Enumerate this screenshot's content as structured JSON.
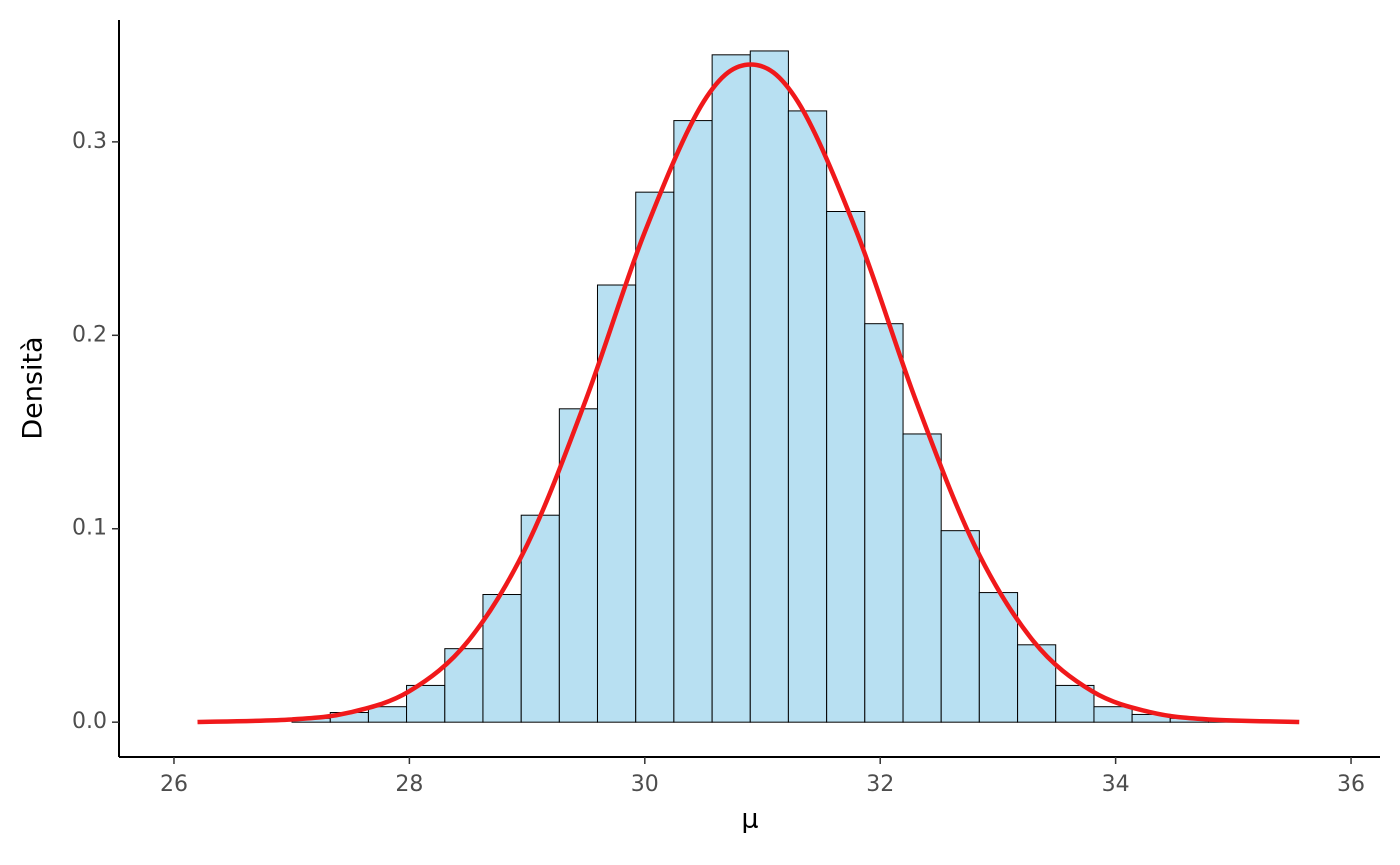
{
  "chart_data": {
    "type": "histogram",
    "xlabel": "μ",
    "ylabel": "Densità",
    "bins": [
      26.03,
      26.354,
      26.679,
      27.003,
      27.328,
      27.652,
      27.976,
      28.301,
      28.625,
      28.95,
      29.274,
      29.598,
      29.923,
      30.247,
      30.572,
      30.896,
      31.22,
      31.545,
      31.869,
      32.194,
      32.518,
      32.842,
      33.167,
      33.491,
      33.816,
      34.14,
      34.464,
      34.789,
      35.113,
      35.438,
      35.762
    ],
    "values": [
      0,
      0,
      0,
      0.002,
      0.005,
      0.008,
      0.019,
      0.038,
      0.066,
      0.107,
      0.162,
      0.226,
      0.274,
      0.311,
      0.345,
      0.347,
      0.316,
      0.264,
      0.206,
      0.149,
      0.099,
      0.067,
      0.04,
      0.019,
      0.008,
      0.004,
      0.002,
      0.001,
      0,
      0
    ],
    "color": "#b8e0f2",
    "edgecolor": "#000000",
    "curve": {
      "color": "#f0191b",
      "x": [
        26.2,
        27,
        27.5,
        28,
        28.5,
        29,
        29.5,
        30,
        30.5,
        30.9,
        31.3,
        31.8,
        32.3,
        32.8,
        33.3,
        33.8,
        34.3,
        34.8,
        35.56
      ],
      "y": [
        0.0001,
        0.0014,
        0.0051,
        0.016,
        0.042,
        0.0916,
        0.1668,
        0.2534,
        0.3208,
        0.34,
        0.3208,
        0.2534,
        0.1668,
        0.0916,
        0.042,
        0.016,
        0.0051,
        0.0014,
        0.0001
      ]
    },
    "xlim": [
      25.533,
      36.246
    ],
    "ylim": [
      -0.018,
      0.363
    ],
    "xticks": [
      26,
      28,
      30,
      32,
      34,
      36
    ],
    "yticks": [
      {
        "value": 0,
        "label": "0.0"
      },
      0.1,
      0.2,
      0.3
    ],
    "grid": false
  }
}
